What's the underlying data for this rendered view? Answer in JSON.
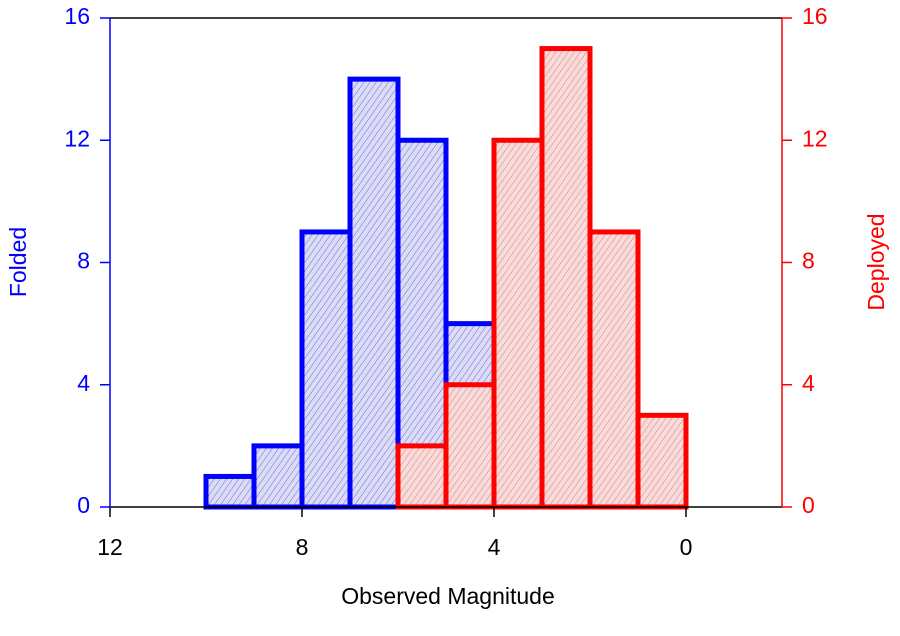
{
  "chart_data": {
    "type": "histogram",
    "xlabel": "Observed Magnitude",
    "ylabel": "Folded",
    "y2label": "Deployed",
    "xlim": [
      12,
      -2
    ],
    "xticks": [
      12,
      8,
      4,
      0
    ],
    "ylim": [
      0,
      16
    ],
    "yticks": [
      0,
      4,
      8,
      12,
      16
    ],
    "y2lim": [
      0,
      16
    ],
    "y2ticks": [
      0,
      4,
      8,
      12,
      16
    ],
    "ycolor": "#0000ff",
    "y2color": "#ff0000",
    "series": [
      {
        "color": "#0000ff",
        "fill": "#d4d4f4",
        "bins": [
          10,
          9,
          8,
          7,
          6,
          5,
          4
        ],
        "values": [
          1,
          2,
          9,
          14,
          12,
          6
        ]
      },
      {
        "color": "#ff0000",
        "fill": "#f6d2d2",
        "axis": "y2",
        "bins": [
          6,
          5,
          4,
          3,
          2,
          1,
          0
        ],
        "values": [
          2,
          4,
          12,
          15,
          9,
          3
        ]
      }
    ]
  }
}
